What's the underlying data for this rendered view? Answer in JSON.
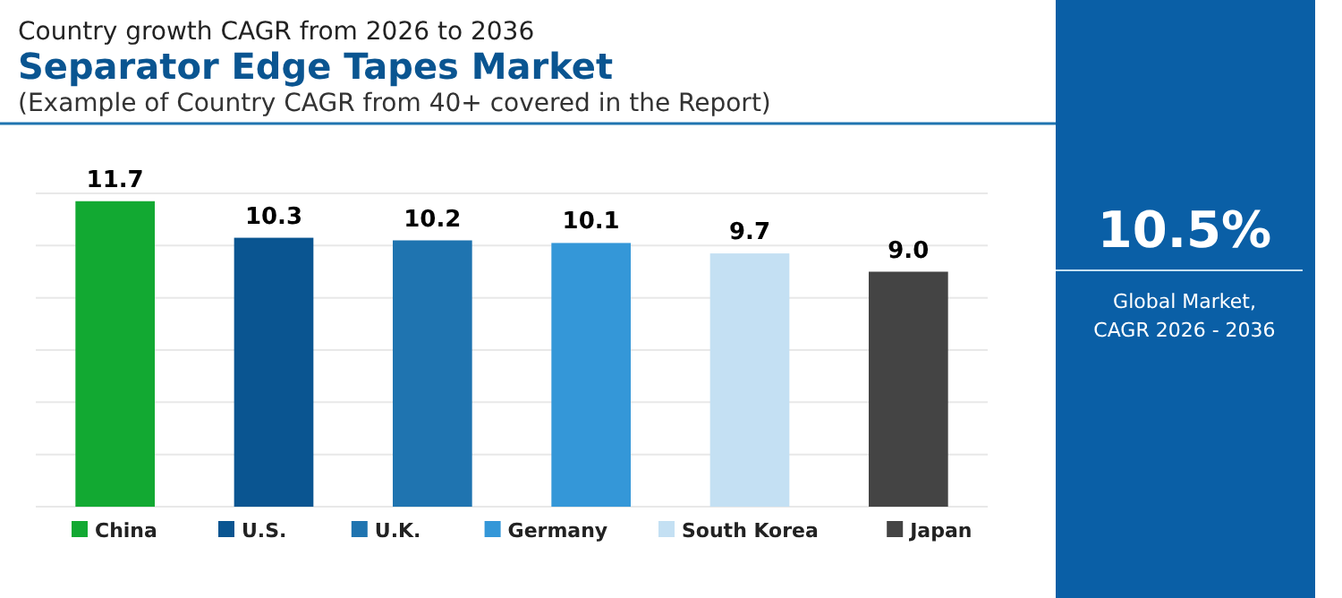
{
  "chart_data": {
    "type": "bar",
    "title": "Separator Edge Tapes Market",
    "subtitle": "Country growth CAGR from 2026 to 2036",
    "annotations": [
      "(Example of Country CAGR from 40+ covered in the Report)",
      "10.5%",
      "Global Market,\nCAGR 2026 - 2036"
    ],
    "categories": [
      "China",
      "U.S.",
      "U.K.",
      "Germany",
      "South Korea",
      "Japan"
    ],
    "values": [
      11.7,
      10.3,
      10.2,
      10.1,
      9.7,
      9.0
    ],
    "value_labels": [
      "11.7",
      "10.3",
      "10.2",
      "10.1",
      "9.7",
      "9.0"
    ],
    "colors": [
      "#12a932",
      "#0a5591",
      "#1f74b0",
      "#3497d8",
      "#c4e0f3",
      "#444444"
    ],
    "ylim": [
      0,
      12
    ],
    "yticks": [
      {
        "value": 0,
        "label": null
      },
      {
        "value": 2,
        "label": null
      },
      {
        "value": 4,
        "label": null
      },
      {
        "value": 6,
        "label": null
      },
      {
        "value": 8,
        "label": null
      },
      {
        "value": 10,
        "label": null
      },
      {
        "value": 12,
        "label": null
      }
    ],
    "grid": "y",
    "data_labels": true,
    "tick_labels": false
  }
}
